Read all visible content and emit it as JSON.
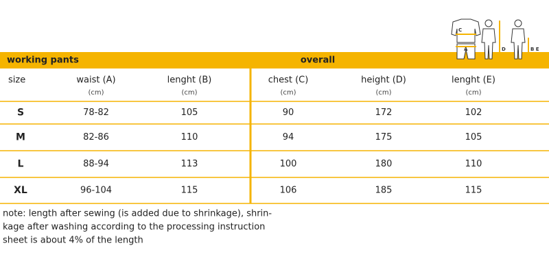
{
  "header": {
    "left": "working pants",
    "right": "overall"
  },
  "figure_labels": [
    "C",
    "A",
    "D",
    "B E"
  ],
  "columns": [
    {
      "label": "size"
    },
    {
      "label": "waist (A)",
      "unit": "(cm)"
    },
    {
      "label": "lenght (B)",
      "unit": "(cm)"
    },
    {
      "label": "chest (C)",
      "unit": "(cm)"
    },
    {
      "label": "height (D)",
      "unit": "(cm)"
    },
    {
      "label": "lenght (E)",
      "unit": "(cm)"
    }
  ],
  "rows": [
    [
      "S",
      "78-82",
      105,
      90,
      172,
      102
    ],
    [
      "M",
      "82-86",
      110,
      94,
      175,
      105
    ],
    [
      "L",
      "88-94",
      113,
      100,
      180,
      110
    ],
    [
      "XL",
      "96-104",
      115,
      106,
      185,
      115
    ]
  ],
  "note": [
    "note: length after sewing (is added due to shrinkage), shrin-",
    "kage after washing according to the processing instruction",
    "sheet is about 4% of the length"
  ]
}
